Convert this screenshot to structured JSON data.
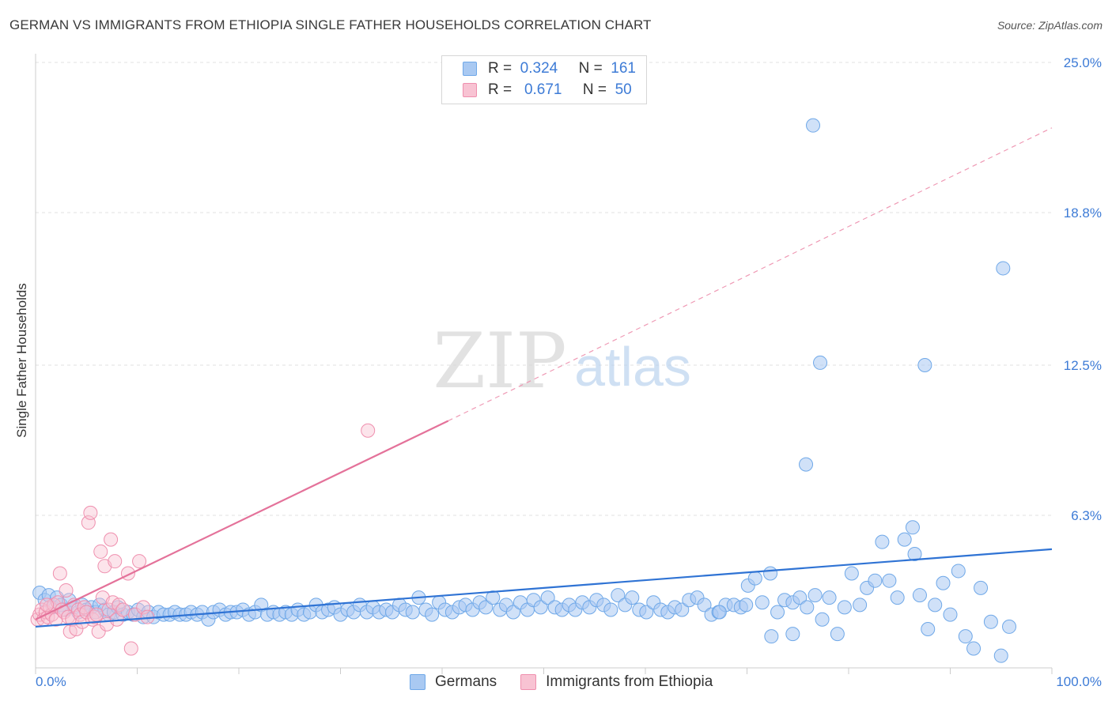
{
  "title": "GERMAN VS IMMIGRANTS FROM ETHIOPIA SINGLE FATHER HOUSEHOLDS CORRELATION CHART",
  "source": "Source: ZipAtlas.com",
  "watermark": {
    "zip": "ZIP",
    "atlas": "atlas"
  },
  "legend": {
    "r_label": "R =",
    "n_label": "N =",
    "series": [
      {
        "r": "0.324",
        "n": "161",
        "color": "#6fa8e8",
        "fill": "#a9c9f2"
      },
      {
        "r": "0.671",
        "n": "50",
        "color": "#ef8fae",
        "fill": "#f8c3d3"
      }
    ]
  },
  "bottom_legend": [
    "Germans",
    "Immigrants from Ethiopia"
  ],
  "chart_data": {
    "type": "scatter",
    "title": "GERMAN VS IMMIGRANTS FROM ETHIOPIA SINGLE FATHER HOUSEHOLDS CORRELATION CHART",
    "xlabel": "",
    "ylabel": "Single Father Households",
    "xlim": [
      0,
      100
    ],
    "ylim": [
      0,
      25.0
    ],
    "x_tick_labels": [
      "0.0%",
      "100.0%"
    ],
    "y_ticks": [
      6.3,
      12.5,
      18.8,
      25.0
    ],
    "y_tick_labels": [
      "6.3%",
      "12.5%",
      "18.8%",
      "25.0%"
    ],
    "grid": true,
    "legend_position": "top-center",
    "series": [
      {
        "name": "Germans",
        "color": "#5b93dc",
        "trend": {
          "x0": 0,
          "y0": 1.7,
          "x1": 100,
          "y1": 4.9
        },
        "points": [
          [
            0.4,
            3.1
          ],
          [
            0.9,
            2.8
          ],
          [
            1.3,
            3.0
          ],
          [
            1.7,
            2.5
          ],
          [
            2.1,
            2.9
          ],
          [
            2.5,
            2.6
          ],
          [
            2.9,
            2.4
          ],
          [
            3.3,
            2.8
          ],
          [
            3.8,
            2.5
          ],
          [
            4.2,
            2.3
          ],
          [
            4.6,
            2.6
          ],
          [
            5.0,
            2.4
          ],
          [
            5.5,
            2.5
          ],
          [
            5.9,
            2.3
          ],
          [
            6.3,
            2.6
          ],
          [
            6.8,
            2.4
          ],
          [
            7.2,
            2.2
          ],
          [
            7.7,
            2.3
          ],
          [
            8.1,
            2.5
          ],
          [
            8.6,
            2.2
          ],
          [
            9.1,
            2.3
          ],
          [
            9.6,
            2.2
          ],
          [
            10.1,
            2.4
          ],
          [
            10.6,
            2.1
          ],
          [
            11.1,
            2.3
          ],
          [
            11.6,
            2.1
          ],
          [
            12.1,
            2.3
          ],
          [
            12.6,
            2.2
          ],
          [
            13.2,
            2.2
          ],
          [
            13.7,
            2.3
          ],
          [
            14.2,
            2.2
          ],
          [
            14.8,
            2.2
          ],
          [
            15.3,
            2.3
          ],
          [
            15.9,
            2.2
          ],
          [
            16.4,
            2.3
          ],
          [
            17.0,
            2.0
          ],
          [
            17.5,
            2.3
          ],
          [
            18.1,
            2.4
          ],
          [
            18.7,
            2.2
          ],
          [
            19.2,
            2.3
          ],
          [
            19.8,
            2.3
          ],
          [
            20.4,
            2.4
          ],
          [
            21.0,
            2.2
          ],
          [
            21.6,
            2.3
          ],
          [
            22.2,
            2.6
          ],
          [
            22.8,
            2.2
          ],
          [
            23.4,
            2.3
          ],
          [
            24.0,
            2.2
          ],
          [
            24.6,
            2.3
          ],
          [
            25.2,
            2.2
          ],
          [
            25.8,
            2.4
          ],
          [
            26.4,
            2.2
          ],
          [
            27.0,
            2.3
          ],
          [
            27.6,
            2.6
          ],
          [
            28.2,
            2.3
          ],
          [
            28.8,
            2.4
          ],
          [
            29.4,
            2.5
          ],
          [
            30.0,
            2.2
          ],
          [
            30.7,
            2.4
          ],
          [
            31.3,
            2.3
          ],
          [
            31.9,
            2.6
          ],
          [
            32.6,
            2.3
          ],
          [
            33.2,
            2.5
          ],
          [
            33.8,
            2.3
          ],
          [
            34.5,
            2.4
          ],
          [
            35.1,
            2.3
          ],
          [
            35.8,
            2.6
          ],
          [
            36.4,
            2.4
          ],
          [
            37.1,
            2.3
          ],
          [
            37.7,
            2.9
          ],
          [
            38.4,
            2.4
          ],
          [
            39.0,
            2.2
          ],
          [
            39.7,
            2.7
          ],
          [
            40.3,
            2.4
          ],
          [
            41.0,
            2.3
          ],
          [
            41.7,
            2.5
          ],
          [
            42.3,
            2.6
          ],
          [
            43.0,
            2.4
          ],
          [
            43.7,
            2.7
          ],
          [
            44.3,
            2.5
          ],
          [
            45.0,
            2.9
          ],
          [
            45.7,
            2.4
          ],
          [
            46.3,
            2.6
          ],
          [
            47.0,
            2.3
          ],
          [
            47.7,
            2.7
          ],
          [
            48.4,
            2.4
          ],
          [
            49.0,
            2.8
          ],
          [
            49.7,
            2.5
          ],
          [
            50.4,
            2.9
          ],
          [
            51.1,
            2.5
          ],
          [
            51.8,
            2.4
          ],
          [
            52.5,
            2.6
          ],
          [
            53.1,
            2.4
          ],
          [
            53.8,
            2.7
          ],
          [
            54.5,
            2.5
          ],
          [
            55.2,
            2.8
          ],
          [
            55.9,
            2.6
          ],
          [
            56.6,
            2.4
          ],
          [
            57.3,
            3.0
          ],
          [
            58.0,
            2.6
          ],
          [
            58.7,
            2.9
          ],
          [
            59.4,
            2.4
          ],
          [
            60.1,
            2.3
          ],
          [
            60.8,
            2.7
          ],
          [
            61.5,
            2.4
          ],
          [
            62.2,
            2.3
          ],
          [
            62.9,
            2.5
          ],
          [
            63.6,
            2.4
          ],
          [
            64.3,
            2.8
          ],
          [
            65.1,
            2.9
          ],
          [
            65.8,
            2.6
          ],
          [
            66.5,
            2.2
          ],
          [
            67.2,
            2.3
          ],
          [
            67.9,
            2.6
          ],
          [
            68.7,
            2.6
          ],
          [
            69.4,
            2.5
          ],
          [
            70.1,
            3.4
          ],
          [
            70.8,
            3.7
          ],
          [
            71.5,
            2.7
          ],
          [
            72.3,
            3.9
          ],
          [
            73.0,
            2.3
          ],
          [
            73.7,
            2.8
          ],
          [
            74.5,
            2.7
          ],
          [
            75.2,
            2.9
          ],
          [
            75.9,
            2.5
          ],
          [
            76.7,
            3.0
          ],
          [
            77.4,
            2.0
          ],
          [
            78.1,
            2.9
          ],
          [
            78.9,
            1.4
          ],
          [
            79.6,
            2.5
          ],
          [
            80.3,
            3.9
          ],
          [
            81.1,
            2.6
          ],
          [
            81.8,
            3.3
          ],
          [
            82.6,
            3.6
          ],
          [
            83.3,
            5.2
          ],
          [
            84.0,
            3.6
          ],
          [
            84.8,
            2.9
          ],
          [
            85.5,
            5.3
          ],
          [
            86.3,
            5.8
          ],
          [
            86.5,
            4.7
          ],
          [
            87.0,
            3.0
          ],
          [
            87.8,
            1.6
          ],
          [
            88.5,
            2.6
          ],
          [
            89.3,
            3.5
          ],
          [
            90.0,
            2.2
          ],
          [
            90.8,
            4.0
          ],
          [
            91.5,
            1.3
          ],
          [
            92.3,
            0.8
          ],
          [
            93.0,
            3.3
          ],
          [
            94.0,
            1.9
          ],
          [
            95.0,
            0.5
          ],
          [
            95.8,
            1.7
          ],
          [
            74.5,
            1.4
          ],
          [
            77.2,
            12.6
          ],
          [
            76.5,
            22.4
          ],
          [
            87.5,
            12.5
          ],
          [
            95.2,
            16.5
          ],
          [
            75.8,
            8.4
          ],
          [
            67.3,
            2.3
          ],
          [
            69.9,
            2.6
          ],
          [
            72.4,
            1.3
          ]
        ]
      },
      {
        "name": "Immigrants from Ethiopia",
        "color": "#ec7fa1",
        "trend": {
          "x0": 0,
          "y0": 2.0,
          "x1": 40.6,
          "y1": 10.2
        },
        "trend_ext": {
          "x0": 40.6,
          "y0": 10.2,
          "x1": 100,
          "y1": 22.3
        },
        "points": [
          [
            0.2,
            2.0
          ],
          [
            0.4,
            2.2
          ],
          [
            0.6,
            2.4
          ],
          [
            0.8,
            2.0
          ],
          [
            1.0,
            2.3
          ],
          [
            1.2,
            2.1
          ],
          [
            1.4,
            2.5
          ],
          [
            1.6,
            2.2
          ],
          [
            1.8,
            2.6
          ],
          [
            2.0,
            2.0
          ],
          [
            2.2,
            2.7
          ],
          [
            2.4,
            3.9
          ],
          [
            2.6,
            2.4
          ],
          [
            2.8,
            2.3
          ],
          [
            3.0,
            3.2
          ],
          [
            3.2,
            2.1
          ],
          [
            3.4,
            1.5
          ],
          [
            3.6,
            2.0
          ],
          [
            3.8,
            2.6
          ],
          [
            4.0,
            1.6
          ],
          [
            4.2,
            2.4
          ],
          [
            4.4,
            2.2
          ],
          [
            4.6,
            1.9
          ],
          [
            4.8,
            2.5
          ],
          [
            5.0,
            2.3
          ],
          [
            5.2,
            6.0
          ],
          [
            5.4,
            6.4
          ],
          [
            5.6,
            2.0
          ],
          [
            5.8,
            2.1
          ],
          [
            6.0,
            2.2
          ],
          [
            6.2,
            1.5
          ],
          [
            6.4,
            4.8
          ],
          [
            6.6,
            2.9
          ],
          [
            6.8,
            4.2
          ],
          [
            7.0,
            1.8
          ],
          [
            7.2,
            2.4
          ],
          [
            7.4,
            5.3
          ],
          [
            7.6,
            2.7
          ],
          [
            7.8,
            4.4
          ],
          [
            8.0,
            2.0
          ],
          [
            8.2,
            2.6
          ],
          [
            8.6,
            2.4
          ],
          [
            9.1,
            3.9
          ],
          [
            9.4,
            0.8
          ],
          [
            9.8,
            2.2
          ],
          [
            10.2,
            4.4
          ],
          [
            10.6,
            2.5
          ],
          [
            11.0,
            2.1
          ],
          [
            1.1,
            2.6
          ],
          [
            32.7,
            9.8
          ]
        ]
      }
    ]
  }
}
